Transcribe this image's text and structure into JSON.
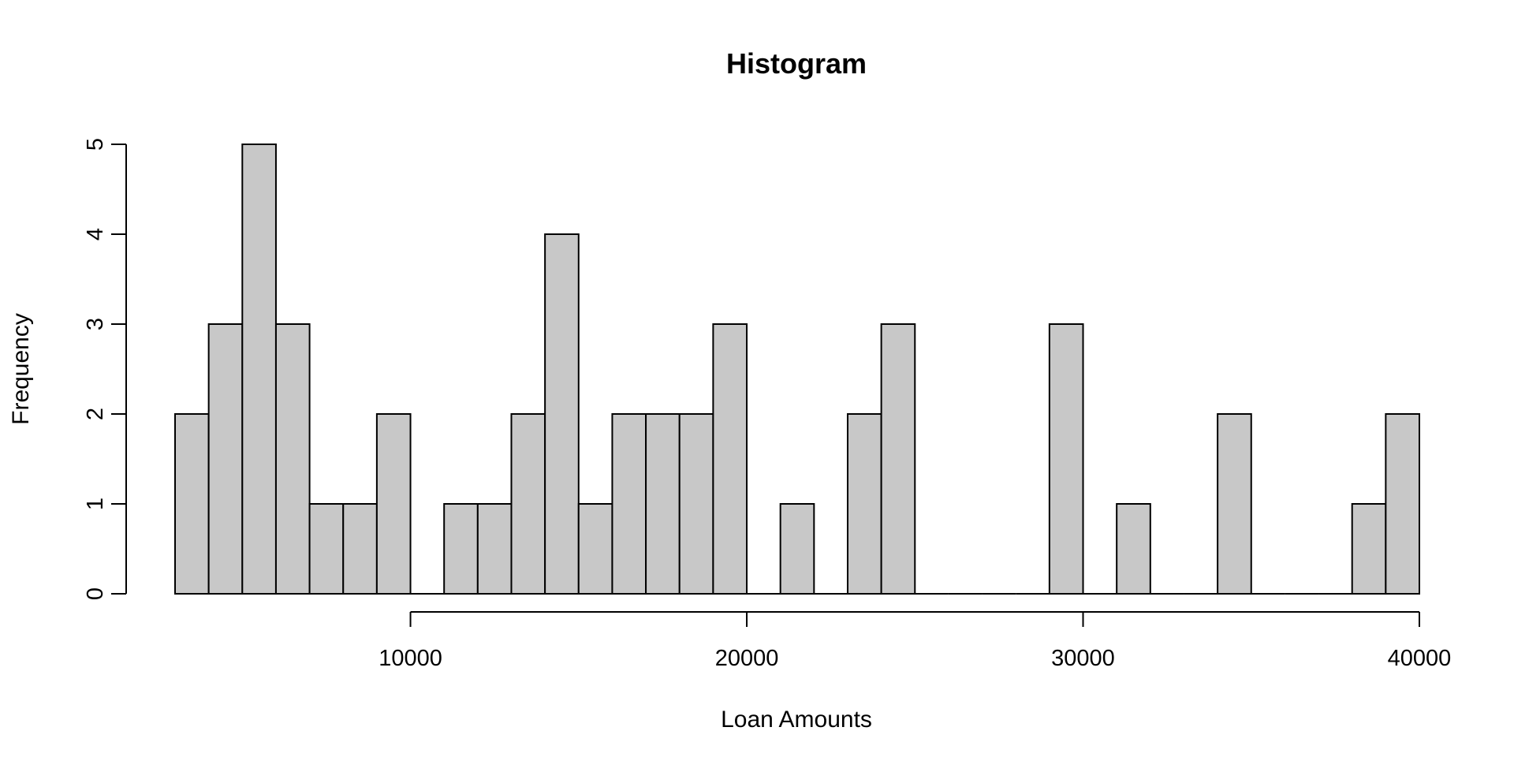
{
  "chart_data": {
    "type": "bar",
    "title": "Histogram",
    "xlabel": "Loan Amounts",
    "ylabel": "Frequency",
    "bin_width": 1000,
    "x_start": 3000,
    "xlim": [
      3000,
      40000
    ],
    "ylim": [
      0,
      5
    ],
    "x_ticks": [
      10000,
      20000,
      30000,
      40000
    ],
    "y_ticks": [
      0,
      1,
      2,
      3,
      4,
      5
    ],
    "bar_color": "#c8c8c8",
    "values": [
      2,
      3,
      5,
      3,
      1,
      1,
      2,
      0,
      1,
      1,
      2,
      4,
      1,
      2,
      2,
      2,
      3,
      0,
      1,
      0,
      2,
      3,
      0,
      0,
      0,
      0,
      3,
      0,
      1,
      0,
      0,
      2,
      0,
      0,
      0,
      1,
      2
    ]
  }
}
